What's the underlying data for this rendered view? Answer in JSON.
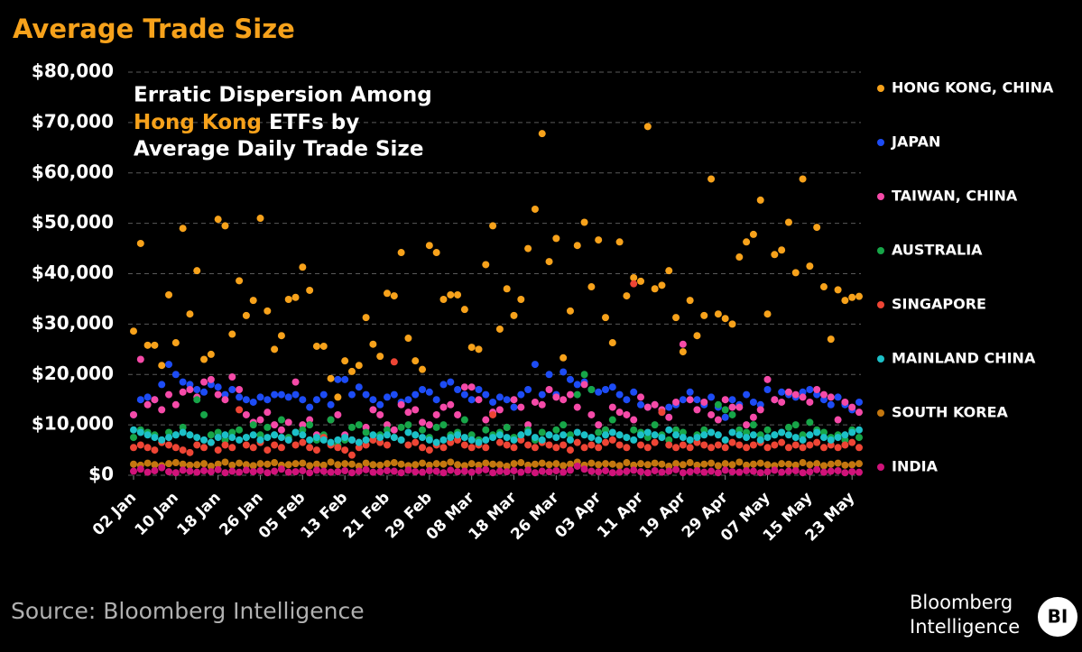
{
  "chart_data": {
    "type": "scatter",
    "title": "Average Trade Size",
    "annotation": [
      "Erratic Dispersion Among",
      "Hong Kong",
      " ETFs by",
      "Average Daily Trade Size"
    ],
    "source": "Source: Bloomberg Intelligence",
    "logo": [
      "Bloomberg",
      "Intelligence",
      "BI"
    ],
    "categories": [
      "02 Jan",
      null,
      null,
      null,
      null,
      null,
      "10 Jan",
      null,
      null,
      null,
      null,
      null,
      "18 Jan",
      null,
      null,
      null,
      null,
      null,
      "26 Jan",
      null,
      null,
      null,
      null,
      null,
      "05 Feb",
      null,
      null,
      null,
      null,
      null,
      "13 Feb",
      null,
      null,
      null,
      null,
      null,
      "21 Feb",
      null,
      null,
      null,
      null,
      null,
      "29 Feb",
      null,
      null,
      null,
      null,
      null,
      "08 Mar",
      null,
      null,
      null,
      null,
      null,
      "18 Mar",
      null,
      null,
      null,
      null,
      null,
      "26 Mar",
      null,
      null,
      null,
      null,
      null,
      "03 Apr",
      null,
      null,
      null,
      null,
      null,
      "11 Apr",
      null,
      null,
      null,
      null,
      null,
      "19 Apr",
      null,
      null,
      null,
      null,
      null,
      "29 Apr",
      null,
      null,
      null,
      null,
      null,
      "07 May",
      null,
      null,
      null,
      null,
      null,
      "15 May",
      null,
      null,
      null,
      null,
      null,
      "23 May",
      null
    ],
    "ylim": [
      0,
      80000
    ],
    "yticks": [
      {
        "value": 0,
        "label": "$0"
      },
      {
        "value": 10000,
        "label": "$10,000"
      },
      {
        "value": 20000,
        "label": "$20,000"
      },
      {
        "value": 30000,
        "label": "$30,000"
      },
      {
        "value": 40000,
        "label": "$40,000"
      },
      {
        "value": 50000,
        "label": "$50,000"
      },
      {
        "value": 60000,
        "label": "$60,000"
      },
      {
        "value": 70000,
        "label": "$70,000"
      },
      {
        "value": 80000,
        "label": "$80,000"
      }
    ],
    "grid": true,
    "legend": "right",
    "series": [
      {
        "name": "HONG KONG, CHINA",
        "color": "#f7a21b",
        "values": [
          28600,
          46000,
          25800,
          25800,
          21800,
          35800,
          26300,
          49000,
          32000,
          40600,
          23000,
          24000,
          50800,
          49500,
          28000,
          38600,
          31700,
          34700,
          51000,
          32600,
          25000,
          27700,
          34900,
          35300,
          41300,
          36700,
          25600,
          25600,
          19200,
          15500,
          22700,
          20600,
          21800,
          31300,
          26000,
          23600,
          36100,
          35600,
          44200,
          27200,
          22700,
          21000,
          45600,
          44200,
          34900,
          35800,
          35800,
          32900,
          25400,
          25000,
          41800,
          49500,
          29000,
          37000,
          31700,
          34900,
          45000,
          52800,
          67800,
          42400,
          47000,
          23300,
          32600,
          45600,
          50200,
          37400,
          46700,
          31300,
          26300,
          46300,
          35600,
          39200,
          38500,
          69200,
          37000,
          37700,
          40600,
          31300,
          24500,
          34700,
          27700,
          31700,
          58800,
          32000,
          31100,
          30000,
          43300,
          46300,
          47800,
          54600,
          32000,
          43800,
          44700,
          50200,
          40200,
          58800,
          41500,
          49200,
          37400,
          27000,
          36800,
          34700,
          35300,
          35500
        ]
      },
      {
        "name": "JAPAN",
        "color": "#1d4cf5",
        "values": [
          12000,
          15000,
          15500,
          15000,
          18000,
          22000,
          20000,
          18500,
          18000,
          17000,
          16500,
          18000,
          17500,
          16000,
          17000,
          15500,
          15000,
          14500,
          15500,
          15000,
          16000,
          16000,
          15500,
          16000,
          15000,
          13500,
          15000,
          16000,
          14000,
          19000,
          19000,
          16000,
          17500,
          16000,
          15000,
          14000,
          15500,
          16000,
          14500,
          15000,
          16000,
          17000,
          16500,
          15000,
          18000,
          18500,
          17000,
          16000,
          15000,
          17000,
          16000,
          14500,
          15500,
          15000,
          13500,
          16000,
          17000,
          22000,
          16000,
          20000,
          16000,
          20500,
          19000,
          18000,
          18500,
          17000,
          16500,
          17000,
          17500,
          16000,
          15000,
          16500,
          14000,
          13500,
          14000,
          12500,
          13500,
          14000,
          15000,
          16500,
          15000,
          14000,
          15500,
          13500,
          11500,
          15000,
          14000,
          16000,
          14500,
          14000,
          17000,
          15000,
          16500,
          16000,
          15500,
          16500,
          17000,
          16000,
          15000,
          14000,
          15500,
          14000,
          13000,
          14500
        ]
      },
      {
        "name": "TAIWAN, CHINA",
        "color": "#f54aa8",
        "values": [
          12000,
          23000,
          14000,
          15000,
          13000,
          16000,
          14000,
          16500,
          17000,
          15500,
          18500,
          19000,
          16000,
          15000,
          19500,
          17000,
          12000,
          10500,
          11000,
          12500,
          10000,
          9000,
          10500,
          18500,
          10000,
          11000,
          8000,
          7500,
          11000,
          12000,
          8000,
          7000,
          6500,
          9500,
          13000,
          12000,
          10000,
          9000,
          14000,
          12500,
          13000,
          10500,
          10000,
          12000,
          13500,
          14000,
          12000,
          17500,
          17500,
          15000,
          11000,
          12500,
          13000,
          9500,
          15000,
          13500,
          10000,
          14500,
          14000,
          17000,
          15500,
          15000,
          16000,
          13500,
          18000,
          12000,
          10000,
          9000,
          13500,
          12500,
          12000,
          11000,
          15500,
          13500,
          14000,
          13000,
          11500,
          14500,
          26000,
          15000,
          13000,
          14500,
          12000,
          11000,
          15000,
          13500,
          13500,
          10000,
          11500,
          13000,
          19000,
          15000,
          14500,
          16500,
          16000,
          15500,
          14500,
          17000,
          16000,
          15500,
          11000,
          14500,
          13500,
          12500
        ]
      },
      {
        "name": "AUSTRALIA",
        "color": "#17a548",
        "values": [
          7500,
          9000,
          8500,
          8000,
          7000,
          8500,
          8000,
          9500,
          8000,
          15000,
          12000,
          8000,
          8500,
          7000,
          8500,
          9000,
          7500,
          10000,
          8000,
          9500,
          8000,
          11000,
          7500,
          8500,
          9000,
          10000,
          7000,
          8000,
          11000,
          6000,
          7000,
          9500,
          10000,
          8500,
          7000,
          8000,
          9000,
          7500,
          9500,
          10000,
          8000,
          9000,
          7500,
          9500,
          10000,
          8000,
          8500,
          11000,
          8000,
          7000,
          9000,
          8000,
          8500,
          9500,
          7500,
          8000,
          9000,
          7000,
          8500,
          8000,
          9000,
          10000,
          8000,
          16000,
          20000,
          17000,
          8500,
          9000,
          11000,
          8000,
          7500,
          9000,
          8500,
          7500,
          10000,
          8000,
          7000,
          9000,
          8500,
          7000,
          8000,
          9000,
          8500,
          14000,
          13000,
          12000,
          9000,
          8500,
          10000,
          8000,
          9000,
          8000,
          8500,
          9500,
          10000,
          8000,
          10500,
          9000,
          8500,
          7500,
          8000,
          7000,
          9000,
          7500
        ]
      },
      {
        "name": "SINGAPORE",
        "color": "#ee4535",
        "values": [
          5500,
          6000,
          5500,
          5000,
          6500,
          6000,
          5500,
          5000,
          4500,
          6000,
          5500,
          6500,
          5000,
          6000,
          5500,
          13000,
          6000,
          5500,
          6500,
          5000,
          6000,
          5500,
          7000,
          6000,
          6500,
          5500,
          5000,
          7500,
          6000,
          5500,
          5000,
          4000,
          5500,
          6000,
          7000,
          6500,
          6000,
          22500,
          7000,
          6000,
          6500,
          5500,
          5000,
          6000,
          5500,
          6500,
          7000,
          6000,
          5500,
          6000,
          5500,
          12000,
          6500,
          6000,
          5500,
          7000,
          6000,
          5500,
          6500,
          6000,
          5500,
          6000,
          5000,
          6500,
          5500,
          6000,
          5500,
          6500,
          7000,
          6000,
          5500,
          38000,
          6000,
          5500,
          6500,
          12500,
          6000,
          5500,
          6000,
          5500,
          6500,
          6000,
          5500,
          6000,
          5500,
          6500,
          6000,
          5500,
          6000,
          6500,
          5500,
          6000,
          6500,
          5500,
          6000,
          5500,
          6000,
          6500,
          5500,
          6000,
          5500,
          6000,
          6500,
          5500
        ]
      },
      {
        "name": "MAINLAND CHINA",
        "color": "#1cc0c8",
        "values": [
          9000,
          8500,
          8000,
          7500,
          7000,
          7500,
          8000,
          8500,
          8000,
          7500,
          7000,
          6500,
          7500,
          8000,
          7500,
          7000,
          7500,
          8000,
          7000,
          7500,
          8000,
          7500,
          7000,
          8500,
          8000,
          7000,
          7500,
          7000,
          6500,
          7000,
          7500,
          7000,
          6500,
          7000,
          8000,
          7500,
          8000,
          7500,
          7000,
          8500,
          8000,
          7500,
          7000,
          6500,
          7000,
          7500,
          8000,
          7500,
          7000,
          6500,
          7000,
          7500,
          8000,
          7500,
          7000,
          8000,
          8500,
          7500,
          7000,
          8000,
          7500,
          8000,
          7000,
          8500,
          8000,
          7500,
          7000,
          8000,
          8500,
          8000,
          7500,
          7000,
          8000,
          8500,
          8000,
          7500,
          9000,
          8000,
          7500,
          7000,
          7500,
          8000,
          8500,
          8000,
          7000,
          8500,
          8000,
          7500,
          8000,
          7000,
          7500,
          8000,
          8500,
          8000,
          7500,
          7000,
          8000,
          8500,
          7500,
          7000,
          7500,
          8000,
          8500,
          9000
        ]
      },
      {
        "name": "SOUTH KOREA",
        "color": "#c4770f",
        "values": [
          2200,
          2000,
          2400,
          2100,
          1900,
          2300,
          2500,
          2200,
          2000,
          2100,
          2300,
          1800,
          2200,
          2600,
          2000,
          2400,
          2100,
          1900,
          2300,
          2200,
          2500,
          2000,
          2100,
          2300,
          2400,
          1900,
          2200,
          2000,
          2600,
          2100,
          2300,
          2200,
          1800,
          2400,
          2100,
          2000,
          2300,
          2500,
          2200,
          1900,
          2100,
          2400,
          2000,
          2300,
          2200,
          2600,
          2100,
          1900,
          2300,
          2000,
          2400,
          2200,
          2100,
          1800,
          2300,
          2500,
          2000,
          2200,
          2400,
          2100,
          2300,
          1900,
          2200,
          2600,
          2000,
          2400,
          2100,
          2300,
          2200,
          1900,
          2500,
          2000,
          2300,
          2100,
          2400,
          2200,
          1800,
          2300,
          2100,
          2500,
          2000,
          2200,
          2400,
          1900,
          2300,
          2100,
          2600,
          2000,
          2200,
          2400,
          2100,
          1900,
          2300,
          2200,
          2000,
          2500,
          2100,
          2300,
          1900,
          2200,
          2400,
          2000,
          2100,
          2300
        ]
      },
      {
        "name": "INDIA",
        "color": "#d0137a",
        "values": [
          800,
          1200,
          600,
          900,
          1500,
          700,
          500,
          1000,
          800,
          600,
          900,
          700,
          1100,
          500,
          800,
          600,
          1000,
          700,
          900,
          500,
          800,
          1200,
          600,
          700,
          900,
          500,
          1000,
          800,
          600,
          700,
          900,
          500,
          800,
          1100,
          600,
          700,
          900,
          800,
          500,
          1000,
          700,
          600,
          900,
          800,
          500,
          1000,
          700,
          800,
          600,
          900,
          1100,
          500,
          800,
          700,
          900,
          600,
          1000,
          500,
          800,
          700,
          900,
          600,
          1000,
          1800,
          1200,
          800,
          700,
          900,
          500,
          600,
          800,
          1000,
          700,
          500,
          900,
          600,
          800,
          1100,
          500,
          700,
          900,
          600,
          800,
          500,
          1000,
          700,
          600,
          900,
          800,
          500,
          700,
          1000,
          600,
          800,
          900,
          500,
          700,
          1100,
          600,
          800,
          900,
          500,
          700,
          600
        ]
      }
    ]
  }
}
